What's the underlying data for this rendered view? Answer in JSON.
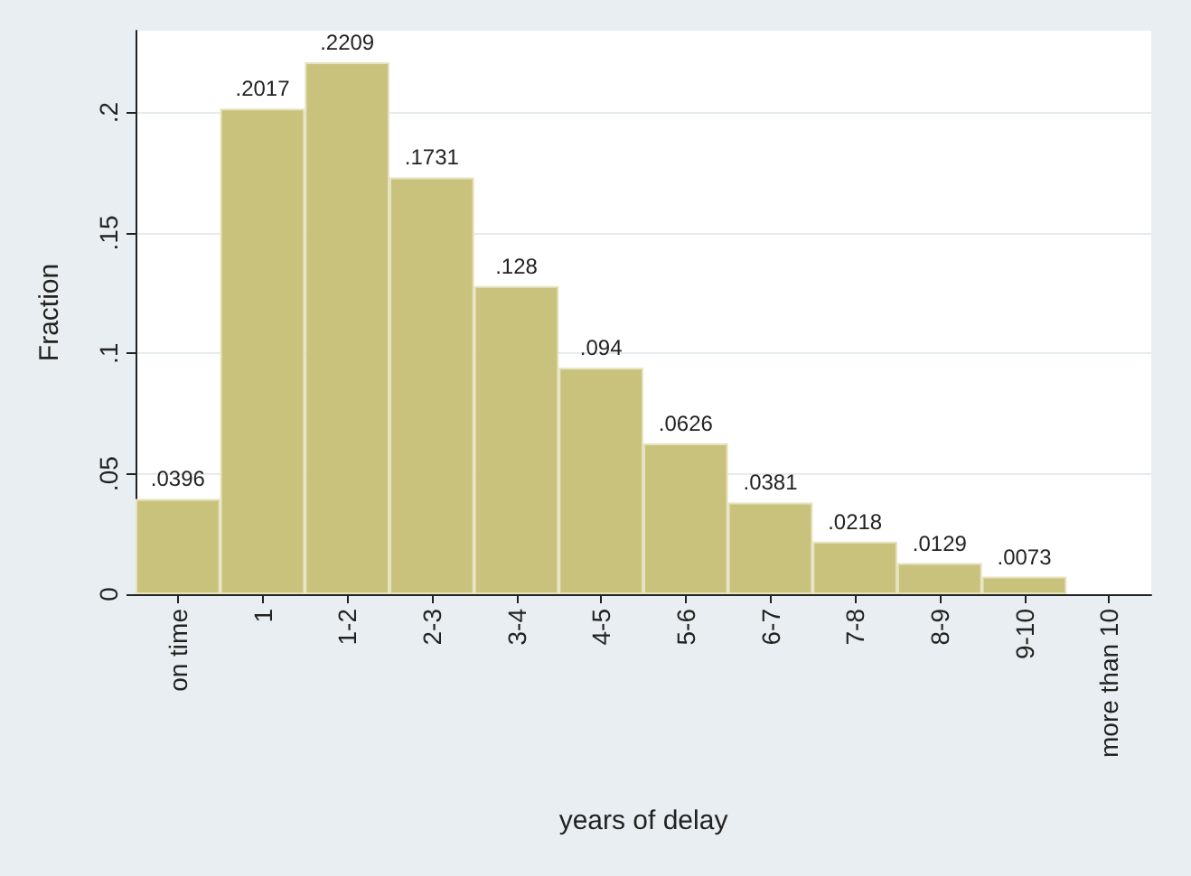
{
  "chart_data": {
    "type": "bar",
    "xlabel": "years of delay",
    "ylabel": "Fraction",
    "categories": [
      "on time",
      "1",
      "1-2",
      "2-3",
      "3-4",
      "4-5",
      "5-6",
      "6-7",
      "7-8",
      "8-9",
      "9-10",
      "more than 10"
    ],
    "values": [
      0.0396,
      0.2017,
      0.2209,
      0.1731,
      0.128,
      0.094,
      0.0626,
      0.0381,
      0.0218,
      0.0129,
      0.0073,
      null
    ],
    "value_labels": [
      ".0396",
      ".2017",
      ".2209",
      ".1731",
      ".128",
      ".094",
      ".0626",
      ".0381",
      ".0218",
      ".0129",
      ".0073",
      null
    ],
    "color": "#c9c27d",
    "ylim": [
      0,
      0.234
    ],
    "yticks": [
      {
        "value": 0,
        "label": "0"
      },
      {
        "value": 0.05,
        "label": ".05"
      },
      {
        "value": 0.1,
        "label": ".1"
      },
      {
        "value": 0.15,
        "label": ".15"
      },
      {
        "value": 0.2,
        "label": ".2"
      }
    ],
    "grid": "y"
  }
}
